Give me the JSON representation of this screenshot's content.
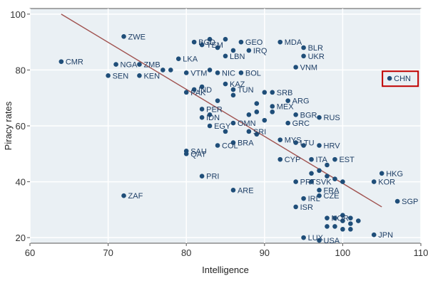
{
  "chart_data": {
    "type": "scatter",
    "title": "",
    "xlabel": "Intelligence",
    "ylabel": "Piracy rates",
    "xlim": [
      60,
      110
    ],
    "ylim": [
      18,
      102
    ],
    "xticks": [
      "60",
      "70",
      "80",
      "90",
      "100",
      "110"
    ],
    "yticks": [
      "20",
      "40",
      "60",
      "80",
      "100"
    ],
    "grid": true,
    "colors": {
      "point": "#1f4e79",
      "label": "#1f3f66",
      "trend": "#a0524f",
      "highlight": "#c00000",
      "plot_bg": "#eaf0f4",
      "grid": "#ffffff",
      "frame": "#555555"
    },
    "trend_line": {
      "x": [
        64,
        105
      ],
      "y": [
        100,
        31
      ]
    },
    "highlight_label": "CHN",
    "points": [
      {
        "label": "ZWE",
        "x": 72,
        "y": 92
      },
      {
        "label": "CMR",
        "x": 64,
        "y": 83
      },
      {
        "label": "NGA",
        "x": 71,
        "y": 82
      },
      {
        "label": "ZMB",
        "x": 74,
        "y": 82
      },
      {
        "label": "SEN",
        "x": 70,
        "y": 78
      },
      {
        "label": "KEN",
        "x": 74,
        "y": 78
      },
      {
        "label": "LKA",
        "x": 79,
        "y": 84
      },
      {
        "label": "VTM",
        "x": 80,
        "y": 79
      },
      {
        "label": "IND",
        "x": 81,
        "y": 73
      },
      {
        "label": "PAK",
        "x": 80,
        "y": 72
      },
      {
        "label": "BGD",
        "x": 81,
        "y": 90
      },
      {
        "label": "YEM",
        "x": 82,
        "y": 89
      },
      {
        "label": "GEO",
        "x": 87,
        "y": 90
      },
      {
        "label": "IRQ",
        "x": 88,
        "y": 87
      },
      {
        "label": "LBN",
        "x": 85,
        "y": 85
      },
      {
        "label": "KAZ",
        "x": 85,
        "y": 75
      },
      {
        "label": "TUN",
        "x": 86,
        "y": 73
      },
      {
        "label": "NIC",
        "x": 84,
        "y": 79
      },
      {
        "label": "BOL",
        "x": 87,
        "y": 79
      },
      {
        "label": "MDA",
        "x": 92,
        "y": 90
      },
      {
        "label": "BLR",
        "x": 95,
        "y": 88
      },
      {
        "label": "UKR",
        "x": 95,
        "y": 85
      },
      {
        "label": "VNM",
        "x": 94,
        "y": 81
      },
      {
        "label": "CHN",
        "x": 106,
        "y": 77
      },
      {
        "label": "ARG",
        "x": 93,
        "y": 69
      },
      {
        "label": "SRB",
        "x": 91,
        "y": 72
      },
      {
        "label": "BGR",
        "x": 94,
        "y": 64
      },
      {
        "label": "RUS",
        "x": 97,
        "y": 63
      },
      {
        "label": "GRC",
        "x": 93,
        "y": 61
      },
      {
        "label": "MEX",
        "x": 91,
        "y": 67
      },
      {
        "label": "PER",
        "x": 82,
        "y": 66
      },
      {
        "label": "IDN",
        "x": 82,
        "y": 63
      },
      {
        "label": "OMN",
        "x": 86,
        "y": 61
      },
      {
        "label": "EGY",
        "x": 83,
        "y": 60
      },
      {
        "label": "SRI",
        "x": 88,
        "y": 58
      },
      {
        "label": "COL",
        "x": 84,
        "y": 53
      },
      {
        "label": "BRA",
        "x": 86,
        "y": 54
      },
      {
        "label": "MYS",
        "x": 92,
        "y": 55
      },
      {
        "label": "LTU",
        "x": 94,
        "y": 54
      },
      {
        "label": "HRV",
        "x": 97,
        "y": 53
      },
      {
        "label": "SAU",
        "x": 80,
        "y": 51
      },
      {
        "label": "QAT",
        "x": 80,
        "y": 50
      },
      {
        "label": "CYP",
        "x": 92,
        "y": 48
      },
      {
        "label": "ITA",
        "x": 96,
        "y": 48
      },
      {
        "label": "EST",
        "x": 99,
        "y": 48
      },
      {
        "label": "ISR",
        "x": 94,
        "y": 31
      },
      {
        "label": "IRL",
        "x": 95,
        "y": 34
      },
      {
        "label": "SVK",
        "x": 96,
        "y": 40
      },
      {
        "label": "PRT",
        "x": 94,
        "y": 40
      },
      {
        "label": "FRA",
        "x": 97,
        "y": 37
      },
      {
        "label": "CZE",
        "x": 97,
        "y": 35
      },
      {
        "label": "HKG",
        "x": 105,
        "y": 43
      },
      {
        "label": "KOR",
        "x": 104,
        "y": 40
      },
      {
        "label": "SGP",
        "x": 107,
        "y": 33
      },
      {
        "label": "JPN",
        "x": 104,
        "y": 21
      },
      {
        "label": "LUX",
        "x": 95,
        "y": 20
      },
      {
        "label": "USA",
        "x": 97,
        "y": 19
      },
      {
        "label": "NOR",
        "x": 98,
        "y": 27
      },
      {
        "label": "PRI",
        "x": 82,
        "y": 42
      },
      {
        "label": "ARE",
        "x": 86,
        "y": 37
      },
      {
        "label": "ZAF",
        "x": 72,
        "y": 35
      }
    ],
    "extra_points": [
      {
        "x": 83,
        "y": 91
      },
      {
        "x": 84,
        "y": 88
      },
      {
        "x": 85,
        "y": 91
      },
      {
        "x": 86,
        "y": 87
      },
      {
        "x": 83,
        "y": 80
      },
      {
        "x": 78,
        "y": 80
      },
      {
        "x": 77,
        "y": 80
      },
      {
        "x": 82,
        "y": 74
      },
      {
        "x": 86,
        "y": 71
      },
      {
        "x": 84,
        "y": 69
      },
      {
        "x": 89,
        "y": 68
      },
      {
        "x": 90,
        "y": 72
      },
      {
        "x": 89,
        "y": 65
      },
      {
        "x": 90,
        "y": 62
      },
      {
        "x": 91,
        "y": 65
      },
      {
        "x": 83,
        "y": 64
      },
      {
        "x": 88,
        "y": 64
      },
      {
        "x": 85,
        "y": 58
      },
      {
        "x": 89,
        "y": 57
      },
      {
        "x": 95,
        "y": 53
      },
      {
        "x": 98,
        "y": 46
      },
      {
        "x": 96,
        "y": 43
      },
      {
        "x": 97,
        "y": 44
      },
      {
        "x": 98,
        "y": 42
      },
      {
        "x": 99,
        "y": 41
      },
      {
        "x": 100,
        "y": 40
      },
      {
        "x": 99,
        "y": 27
      },
      {
        "x": 100,
        "y": 26
      },
      {
        "x": 101,
        "y": 27
      },
      {
        "x": 99,
        "y": 24
      },
      {
        "x": 100,
        "y": 23
      },
      {
        "x": 101,
        "y": 25
      },
      {
        "x": 102,
        "y": 26
      },
      {
        "x": 98,
        "y": 24
      },
      {
        "x": 100,
        "y": 28
      },
      {
        "x": 101,
        "y": 23
      }
    ]
  }
}
